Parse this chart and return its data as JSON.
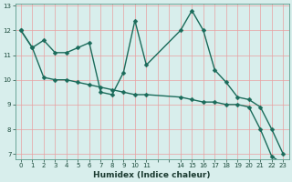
{
  "xlabel": "Humidex (Indice chaleur)",
  "bg_color": "#d8eeec",
  "line_color": "#1a6b5a",
  "grid_color": "#e8a0a0",
  "line1_x": [
    0,
    1,
    2,
    3,
    4,
    5,
    6,
    7,
    8,
    9,
    10,
    11,
    14,
    15,
    16,
    17,
    18,
    19,
    20,
    21,
    22,
    23
  ],
  "line1_y": [
    12.0,
    11.3,
    11.6,
    11.1,
    11.1,
    11.3,
    11.5,
    9.5,
    9.4,
    10.3,
    12.4,
    10.6,
    12.0,
    12.8,
    12.0,
    10.4,
    9.9,
    9.3,
    9.2,
    8.9,
    8.0,
    7.0
  ],
  "line2_x": [
    0,
    1,
    2,
    3,
    4,
    5,
    6,
    7,
    8,
    9,
    10,
    11,
    14,
    15,
    16,
    17,
    18,
    19,
    20,
    21,
    22,
    23
  ],
  "line2_y": [
    12.0,
    11.3,
    10.1,
    10.0,
    10.0,
    9.9,
    9.8,
    9.7,
    9.6,
    9.5,
    9.4,
    9.4,
    9.3,
    9.2,
    9.1,
    9.1,
    9.0,
    9.0,
    8.9,
    8.0,
    6.9,
    6.6
  ],
  "xlim": [
    -0.5,
    23.5
  ],
  "ylim": [
    6.8,
    13.1
  ],
  "yticks": [
    7,
    8,
    9,
    10,
    11,
    12,
    13
  ],
  "xtick_positions": [
    0,
    1,
    2,
    3,
    4,
    5,
    6,
    7,
    8,
    9,
    10,
    11,
    14,
    15,
    16,
    17,
    18,
    19,
    20,
    21,
    22,
    23
  ],
  "xtick_labels": [
    "0",
    "1",
    "2",
    "3",
    "4",
    "5",
    "6",
    "7",
    "8",
    "9",
    "10",
    "11",
    "14",
    "15",
    "16",
    "17",
    "18",
    "19",
    "20",
    "21",
    "22",
    "23"
  ],
  "markersize": 2.5,
  "linewidth": 1.0,
  "tick_fontsize": 5.0,
  "xlabel_fontsize": 6.5
}
